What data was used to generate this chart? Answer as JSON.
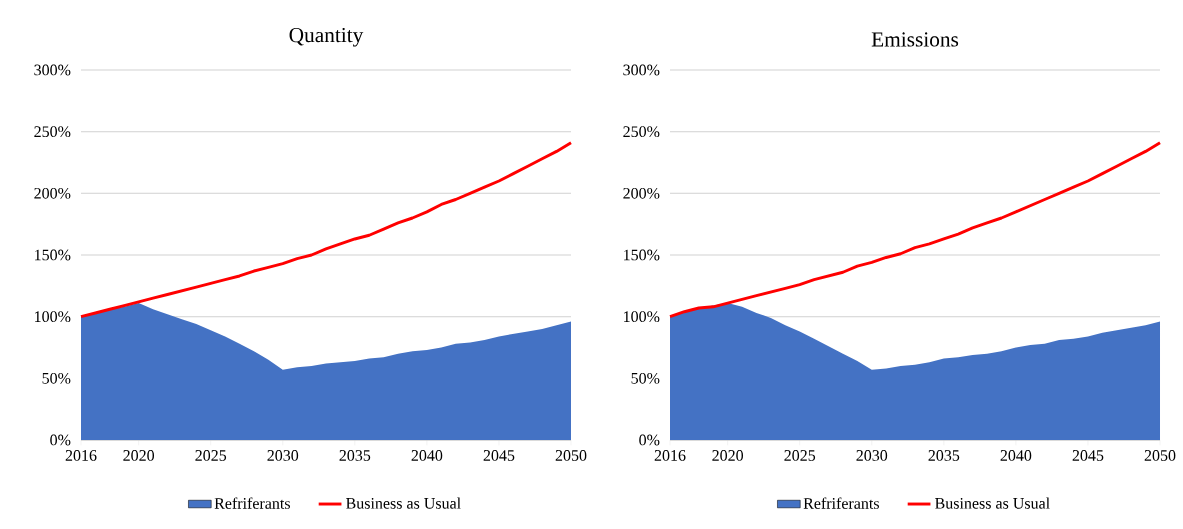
{
  "chart_data": [
    {
      "type": "area",
      "title": "Quantity",
      "x": [
        2016,
        2017,
        2018,
        2019,
        2020,
        2021,
        2022,
        2023,
        2024,
        2025,
        2026,
        2027,
        2028,
        2029,
        2030,
        2031,
        2032,
        2033,
        2034,
        2035,
        2036,
        2037,
        2038,
        2039,
        2040,
        2041,
        2042,
        2043,
        2044,
        2045,
        2046,
        2047,
        2048,
        2049,
        2050
      ],
      "series": [
        {
          "name": "Refriferants",
          "color": "#4472c4",
          "values": [
            100,
            103,
            106,
            108,
            111,
            106,
            102,
            98,
            94,
            89,
            84,
            78,
            72,
            65,
            57,
            59,
            60,
            62,
            63,
            64,
            66,
            67,
            70,
            72,
            73,
            75,
            78,
            79,
            81,
            84,
            86,
            88,
            90,
            93,
            96
          ]
        },
        {
          "name": "Business as Usual",
          "type": "line",
          "color": "#ff0000",
          "line_style": "solid",
          "values": [
            100,
            103,
            106,
            109,
            112,
            115,
            118,
            121,
            124,
            127,
            130,
            133,
            137,
            140,
            143,
            147,
            150,
            155,
            159,
            163,
            166,
            171,
            176,
            180,
            185,
            191,
            195,
            200,
            205,
            210,
            216,
            222,
            228,
            234,
            241
          ]
        }
      ],
      "xlim": [
        2016,
        2050
      ],
      "xticks": [
        2016,
        2020,
        2025,
        2030,
        2035,
        2040,
        2045,
        2050
      ],
      "ylim": [
        0,
        300
      ],
      "yticks": [
        {
          "value": 0,
          "label": "0%"
        },
        {
          "value": 50,
          "label": "50%"
        },
        {
          "value": 100,
          "label": "100%"
        },
        {
          "value": 150,
          "label": "150%"
        },
        {
          "value": 200,
          "label": "200%"
        },
        {
          "value": 250,
          "label": "250%"
        },
        {
          "value": 300,
          "label": "300%"
        }
      ],
      "grid": "y",
      "legend": "bottom",
      "marker": "none"
    },
    {
      "type": "area",
      "title": "Emissions",
      "x": [
        2016,
        2017,
        2018,
        2019,
        2020,
        2021,
        2022,
        2023,
        2024,
        2025,
        2026,
        2027,
        2028,
        2029,
        2030,
        2031,
        2032,
        2033,
        2034,
        2035,
        2036,
        2037,
        2038,
        2039,
        2040,
        2041,
        2042,
        2043,
        2044,
        2045,
        2046,
        2047,
        2048,
        2049,
        2050
      ],
      "series": [
        {
          "name": "Refriferants",
          "color": "#4472c4",
          "values": [
            100,
            104,
            107,
            109,
            111,
            108,
            103,
            99,
            93,
            88,
            82,
            76,
            70,
            64,
            57,
            58,
            60,
            61,
            63,
            66,
            67,
            69,
            70,
            72,
            75,
            77,
            78,
            81,
            82,
            84,
            87,
            89,
            91,
            93,
            96
          ]
        },
        {
          "name": "Business as Usual",
          "type": "line",
          "color": "#ff0000",
          "line_style": "solid",
          "values": [
            100,
            104,
            107,
            108,
            111,
            114,
            117,
            120,
            123,
            126,
            130,
            133,
            136,
            141,
            144,
            148,
            151,
            156,
            159,
            163,
            167,
            172,
            176,
            180,
            185,
            190,
            195,
            200,
            205,
            210,
            216,
            222,
            228,
            234,
            241
          ]
        }
      ],
      "xlim": [
        2016,
        2050
      ],
      "xticks": [
        2016,
        2020,
        2025,
        2030,
        2035,
        2040,
        2045,
        2050
      ],
      "ylim": [
        0,
        300
      ],
      "yticks": [
        {
          "value": 0,
          "label": "0%"
        },
        {
          "value": 50,
          "label": "50%"
        },
        {
          "value": 100,
          "label": "100%"
        },
        {
          "value": 150,
          "label": "150%"
        },
        {
          "value": 200,
          "label": "200%"
        },
        {
          "value": 250,
          "label": "250%"
        },
        {
          "value": 300,
          "label": "300%"
        }
      ],
      "grid": "y",
      "legend": "bottom",
      "marker": "none"
    }
  ]
}
